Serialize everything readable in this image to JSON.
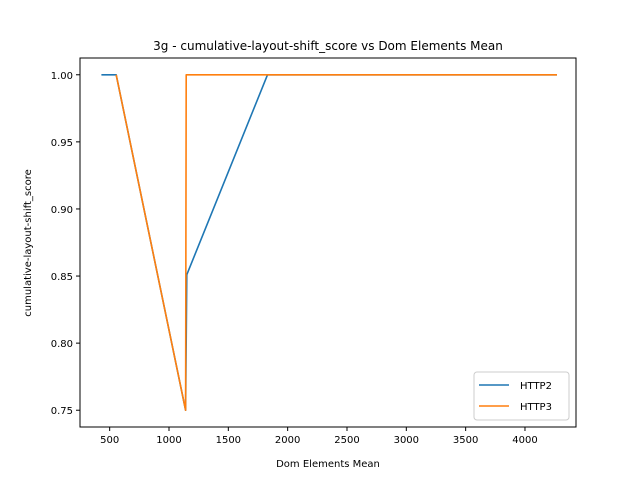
{
  "chart_data": {
    "type": "line",
    "title": "3g - cumulative-layout-shift_score vs Dom Elements Mean",
    "xlabel": "Dom Elements Mean",
    "ylabel": "cumulative-layout-shift_score",
    "xlim": [
      250,
      4430
    ],
    "ylim": [
      0.7375,
      1.0125
    ],
    "xticks": [
      500,
      1000,
      1500,
      2000,
      2500,
      3000,
      3500,
      4000
    ],
    "yticks": [
      0.75,
      0.8,
      0.85,
      0.9,
      0.95,
      1.0
    ],
    "ytick_labels": [
      "0.75",
      "0.80",
      "0.85",
      "0.90",
      "0.95",
      "1.00"
    ],
    "grid": false,
    "legend_position": "lower-right",
    "series": [
      {
        "name": "HTTP2",
        "color": "#1f77b4",
        "x": [
          430,
          555,
          1140,
          1150,
          1830,
          4270
        ],
        "y": [
          1.0,
          1.0,
          0.75,
          0.851,
          1.0,
          1.0
        ]
      },
      {
        "name": "HTTP3",
        "color": "#ff7f0e",
        "x": [
          555,
          1140,
          1145,
          4270
        ],
        "y": [
          1.0,
          0.75,
          1.0,
          1.0
        ]
      }
    ]
  }
}
